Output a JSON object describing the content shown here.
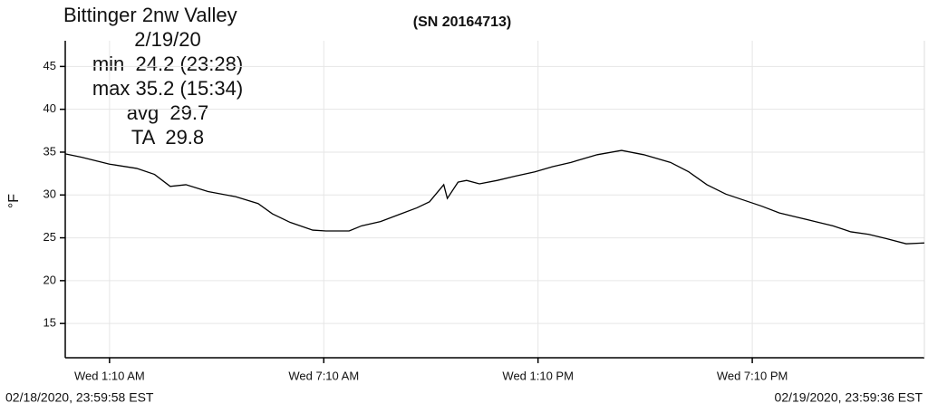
{
  "chart_data": {
    "type": "line",
    "title": "Bittinger 2nw Valley",
    "subtitle": "(SN 20164713)",
    "annotations": [
      "2/19/20",
      "min  24.2 (23:28)",
      "max 35.2 (15:34)",
      "avg  29.7",
      "TA  29.8"
    ],
    "y_label": "°F",
    "start_label": "02/18/2020, 23:59:58 EST",
    "end_label": "02/19/2020, 23:59:36 EST",
    "x": [
      0,
      0.46,
      1.24,
      2.0,
      2.5,
      2.94,
      3.38,
      4.0,
      4.77,
      5.4,
      5.8,
      6.3,
      6.93,
      7.3,
      7.95,
      8.3,
      8.83,
      9.34,
      9.85,
      10.2,
      10.6,
      10.7,
      11.0,
      11.24,
      11.6,
      12.1,
      12.6,
      13.15,
      13.65,
      14.16,
      14.9,
      15.58,
      16.2,
      16.95,
      17.46,
      17.97,
      18.5,
      19.0,
      19.5,
      20.0,
      20.5,
      21.0,
      21.5,
      22.0,
      22.5,
      23.0,
      23.55,
      24.06
    ],
    "values": [
      34.8,
      34.4,
      33.6,
      33.1,
      32.4,
      31.0,
      31.2,
      30.4,
      29.8,
      29.0,
      27.8,
      26.8,
      25.9,
      25.8,
      25.8,
      26.4,
      26.9,
      27.7,
      28.5,
      29.2,
      31.2,
      29.6,
      31.5,
      31.7,
      31.3,
      31.7,
      32.2,
      32.7,
      33.3,
      33.8,
      34.7,
      35.2,
      34.7,
      33.8,
      32.7,
      31.2,
      30.1,
      29.4,
      28.7,
      27.9,
      27.4,
      26.9,
      26.4,
      25.7,
      25.4,
      24.9,
      24.3,
      24.4
    ],
    "color": "#000000",
    "xlim": [
      0,
      24.06
    ],
    "xticks": [
      {
        "value": 1.24,
        "label": "Wed 1:10 AM"
      },
      {
        "value": 7.24,
        "label": "Wed 7:10 AM"
      },
      {
        "value": 13.24,
        "label": "Wed 1:10 PM"
      },
      {
        "value": 19.24,
        "label": "Wed 7:10 PM"
      }
    ],
    "ylim": [
      11,
      48
    ],
    "yticks": [
      15,
      20,
      25,
      30,
      35,
      40,
      45
    ],
    "grid": true
  }
}
